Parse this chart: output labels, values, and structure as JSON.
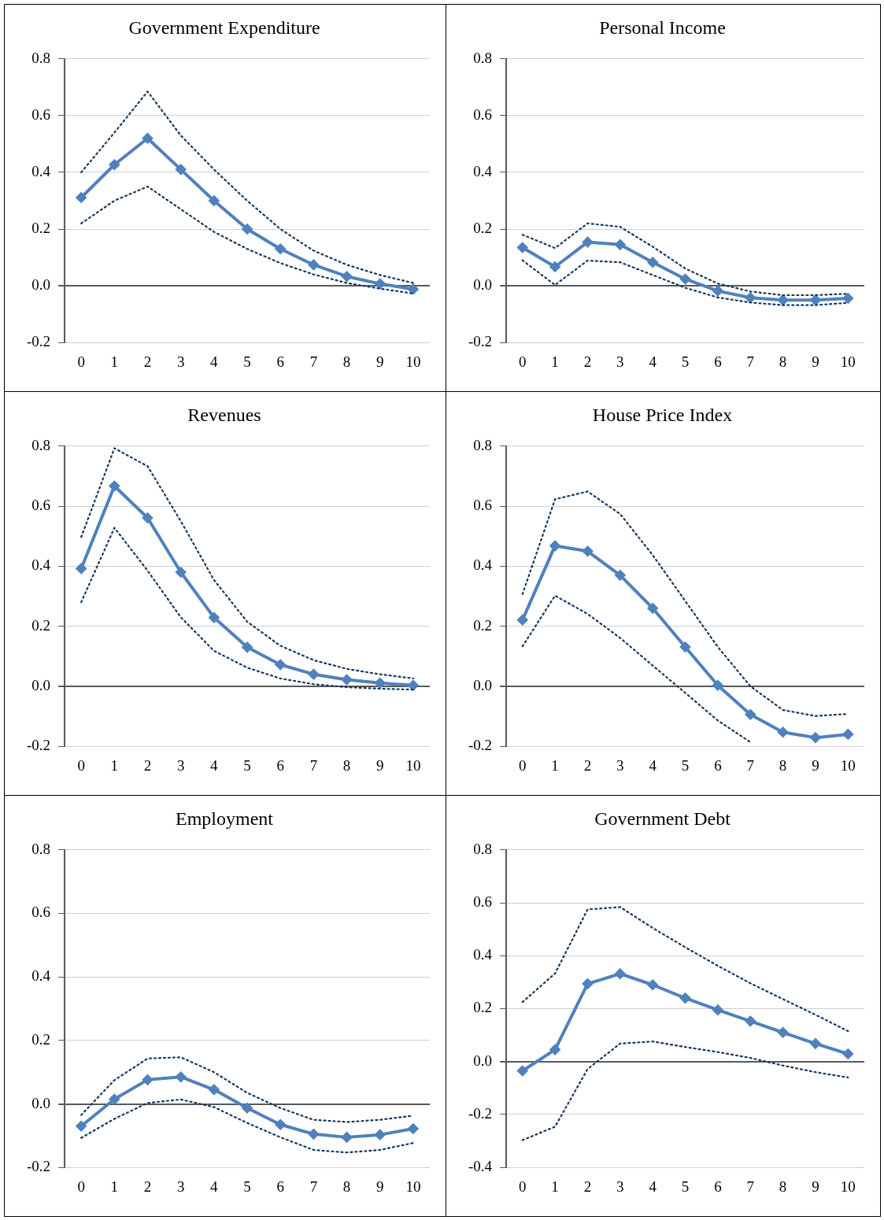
{
  "chart_data": [
    {
      "type": "line",
      "title": "Government Expenditure",
      "categories": [
        "0",
        "1",
        "2",
        "3",
        "4",
        "5",
        "6",
        "7",
        "8",
        "9",
        "10"
      ],
      "ylim": [
        -0.2,
        0.8
      ],
      "yticks": [
        {
          "value": -0.2,
          "label": "-0.2"
        },
        {
          "value": 0,
          "label": "0.0"
        },
        0.2,
        0.4,
        0.6,
        0.8
      ],
      "grid": "y",
      "series": [
        {
          "color": "#17375e",
          "line_style": "dotted",
          "marker": "none",
          "values": [
            0.4,
            0.54,
            0.685,
            0.53,
            0.41,
            0.3,
            0.2,
            0.124,
            0.074,
            0.038,
            0.01
          ]
        },
        {
          "color": "#17375e",
          "line_style": "dotted",
          "marker": "none",
          "values": [
            0.22,
            0.3,
            0.35,
            0.27,
            0.19,
            0.13,
            0.08,
            0.04,
            0.01,
            -0.01,
            -0.027
          ]
        },
        {
          "color": "#4f81bd",
          "line_style": "solid",
          "marker": "diamond",
          "values": [
            0.311,
            0.427,
            0.52,
            0.41,
            0.3,
            0.2,
            0.13,
            0.074,
            0.033,
            0.007,
            -0.012
          ]
        }
      ]
    },
    {
      "type": "line",
      "title": "Personal Income",
      "categories": [
        "0",
        "1",
        "2",
        "3",
        "4",
        "5",
        "6",
        "7",
        "8",
        "9",
        "10"
      ],
      "ylim": [
        -0.2,
        0.8
      ],
      "yticks": [
        {
          "value": -0.2,
          "label": "-0.2"
        },
        {
          "value": 0,
          "label": "0.0"
        },
        0.2,
        0.4,
        0.6,
        0.8
      ],
      "grid": "y",
      "series": [
        {
          "color": "#17375e",
          "line_style": "dotted",
          "marker": "none",
          "values": [
            0.18,
            0.133,
            0.22,
            0.208,
            0.138,
            0.061,
            0.008,
            -0.02,
            -0.033,
            -0.033,
            -0.028
          ]
        },
        {
          "color": "#17375e",
          "line_style": "dotted",
          "marker": "none",
          "values": [
            0.09,
            0.003,
            0.089,
            0.083,
            0.038,
            -0.007,
            -0.041,
            -0.059,
            -0.068,
            -0.068,
            -0.06
          ]
        },
        {
          "color": "#4f81bd",
          "line_style": "solid",
          "marker": "diamond",
          "values": [
            0.135,
            0.067,
            0.154,
            0.145,
            0.083,
            0.024,
            -0.018,
            -0.042,
            -0.05,
            -0.05,
            -0.044
          ]
        }
      ]
    },
    {
      "type": "line",
      "title": "Revenues",
      "categories": [
        "0",
        "1",
        "2",
        "3",
        "4",
        "5",
        "6",
        "7",
        "8",
        "9",
        "10"
      ],
      "ylim": [
        -0.2,
        0.8
      ],
      "yticks": [
        {
          "value": -0.2,
          "label": "-0.2"
        },
        {
          "value": 0,
          "label": "0.0"
        },
        0.2,
        0.4,
        0.6,
        0.8
      ],
      "grid": "y",
      "series": [
        {
          "color": "#17375e",
          "line_style": "dotted",
          "marker": "none",
          "values": [
            0.497,
            0.793,
            0.733,
            0.55,
            0.354,
            0.215,
            0.135,
            0.087,
            0.058,
            0.04,
            0.026
          ]
        },
        {
          "color": "#17375e",
          "line_style": "dotted",
          "marker": "none",
          "values": [
            0.28,
            0.528,
            0.385,
            0.23,
            0.118,
            0.062,
            0.026,
            0.007,
            -0.003,
            -0.008,
            -0.011
          ]
        },
        {
          "color": "#4f81bd",
          "line_style": "solid",
          "marker": "diamond",
          "values": [
            0.392,
            0.667,
            0.561,
            0.38,
            0.229,
            0.13,
            0.072,
            0.04,
            0.022,
            0.011,
            0.003
          ]
        }
      ]
    },
    {
      "type": "line",
      "title": "House Price Index",
      "categories": [
        "0",
        "1",
        "2",
        "3",
        "4",
        "5",
        "6",
        "7",
        "8",
        "9",
        "10"
      ],
      "ylim": [
        -0.2,
        0.8
      ],
      "yticks": [
        {
          "value": -0.2,
          "label": "-0.2"
        },
        {
          "value": 0,
          "label": "0.0"
        },
        0.2,
        0.4,
        0.6,
        0.8
      ],
      "grid": "y",
      "series": [
        {
          "color": "#17375e",
          "line_style": "dotted",
          "marker": "none",
          "values": [
            0.307,
            0.623,
            0.649,
            0.574,
            0.437,
            0.284,
            0.131,
            0.0,
            -0.079,
            -0.099,
            -0.092
          ]
        },
        {
          "color": "#17375e",
          "line_style": "dotted",
          "marker": "none",
          "values": [
            0.133,
            0.302,
            0.241,
            0.161,
            0.069,
            -0.022,
            -0.114,
            -0.186,
            null,
            null,
            null
          ]
        },
        {
          "color": "#4f81bd",
          "line_style": "solid",
          "marker": "diamond",
          "values": [
            0.221,
            0.468,
            0.45,
            0.37,
            0.26,
            0.131,
            0.003,
            -0.094,
            -0.153,
            -0.171,
            -0.16
          ]
        }
      ]
    },
    {
      "type": "line",
      "title": "Employment",
      "categories": [
        "0",
        "1",
        "2",
        "3",
        "4",
        "5",
        "6",
        "7",
        "8",
        "9",
        "10"
      ],
      "ylim": [
        -0.2,
        0.8
      ],
      "yticks": [
        {
          "value": -0.2,
          "label": "-0.2"
        },
        {
          "value": 0,
          "label": "0.0"
        },
        0.2,
        0.4,
        0.6,
        0.8
      ],
      "grid": "y",
      "series": [
        {
          "color": "#17375e",
          "line_style": "dotted",
          "marker": "none",
          "values": [
            -0.035,
            0.075,
            0.143,
            0.147,
            0.1,
            0.035,
            -0.013,
            -0.05,
            -0.057,
            -0.05,
            -0.037
          ]
        },
        {
          "color": "#17375e",
          "line_style": "dotted",
          "marker": "none",
          "values": [
            -0.107,
            -0.047,
            0.003,
            0.014,
            -0.01,
            -0.06,
            -0.105,
            -0.145,
            -0.153,
            -0.145,
            -0.123
          ]
        },
        {
          "color": "#4f81bd",
          "line_style": "solid",
          "marker": "diamond",
          "values": [
            -0.07,
            0.015,
            0.076,
            0.085,
            0.045,
            -0.013,
            -0.065,
            -0.095,
            -0.105,
            -0.097,
            -0.078
          ]
        }
      ]
    },
    {
      "type": "line",
      "title": "Government Debt",
      "categories": [
        "0",
        "1",
        "2",
        "3",
        "4",
        "5",
        "6",
        "7",
        "8",
        "9",
        "10"
      ],
      "ylim": [
        -0.4,
        0.8
      ],
      "yticks": [
        {
          "value": -0.4,
          "label": "-0.4"
        },
        {
          "value": -0.2,
          "label": "-0.2"
        },
        {
          "value": 0,
          "label": "0.0"
        },
        0.2,
        0.4,
        0.6,
        0.8
      ],
      "grid": "y",
      "series": [
        {
          "color": "#17375e",
          "line_style": "dotted",
          "marker": "none",
          "values": [
            0.225,
            0.333,
            0.575,
            0.584,
            0.505,
            0.432,
            0.362,
            0.296,
            0.236,
            0.177,
            0.115
          ]
        },
        {
          "color": "#17375e",
          "line_style": "dotted",
          "marker": "none",
          "values": [
            -0.297,
            -0.246,
            -0.028,
            0.068,
            0.076,
            0.055,
            0.036,
            0.014,
            -0.015,
            -0.04,
            -0.06
          ]
        },
        {
          "color": "#4f81bd",
          "line_style": "solid",
          "marker": "diamond",
          "values": [
            -0.035,
            0.045,
            0.294,
            0.332,
            0.29,
            0.24,
            0.195,
            0.153,
            0.11,
            0.068,
            0.029
          ]
        }
      ]
    }
  ]
}
